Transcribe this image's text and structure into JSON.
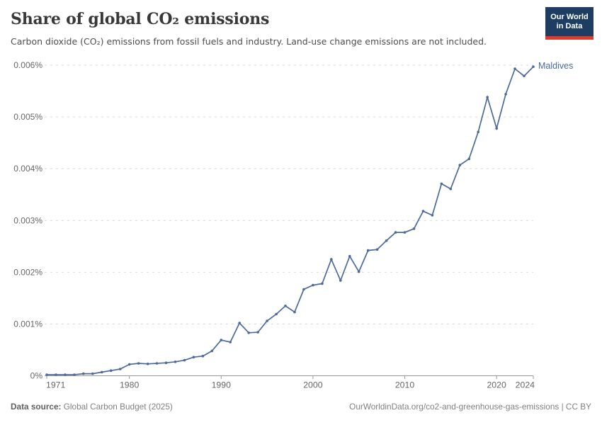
{
  "header": {
    "title": "Share of global CO₂ emissions",
    "subtitle": "Carbon dioxide (CO₂) emissions from fossil fuels and industry. Land-use change emissions are not included.",
    "logo_line1": "Our World",
    "logo_line2": "in Data"
  },
  "footer": {
    "source_label": "Data source:",
    "source_value": " Global Carbon Budget (2025)",
    "credit": "OurWorldinData.org/co2-and-greenhouse-gas-emissions | CC BY"
  },
  "chart_data": {
    "type": "line",
    "title": "Share of global CO₂ emissions",
    "series_label": "Maldives",
    "unit": "%",
    "x": [
      1971,
      1972,
      1973,
      1974,
      1975,
      1976,
      1977,
      1978,
      1979,
      1980,
      1981,
      1982,
      1983,
      1984,
      1985,
      1986,
      1987,
      1988,
      1989,
      1990,
      1991,
      1992,
      1993,
      1994,
      1995,
      1996,
      1997,
      1998,
      1999,
      2000,
      2001,
      2002,
      2003,
      2004,
      2005,
      2006,
      2007,
      2008,
      2009,
      2010,
      2011,
      2012,
      2013,
      2014,
      2015,
      2016,
      2017,
      2018,
      2019,
      2020,
      2021,
      2022,
      2023,
      2024
    ],
    "values": [
      2e-05,
      2e-05,
      2e-05,
      2e-05,
      4e-05,
      4e-05,
      7e-05,
      0.0001,
      0.00013,
      0.00022,
      0.00024,
      0.00023,
      0.00024,
      0.00025,
      0.00027,
      0.0003,
      0.00036,
      0.00038,
      0.00048,
      0.00069,
      0.00065,
      0.00102,
      0.00083,
      0.00084,
      0.00106,
      0.00119,
      0.00135,
      0.00123,
      0.00167,
      0.00175,
      0.00178,
      0.00225,
      0.00184,
      0.00231,
      0.00201,
      0.00242,
      0.00244,
      0.00261,
      0.00277,
      0.00277,
      0.00284,
      0.00318,
      0.0031,
      0.00371,
      0.00361,
      0.00407,
      0.00419,
      0.00471,
      0.00538,
      0.00478,
      0.00544,
      0.00593,
      0.00579,
      0.00597
    ],
    "ylim": [
      0,
      0.006
    ],
    "ytick_values": [
      0,
      0.001,
      0.002,
      0.003,
      0.004,
      0.005,
      0.006
    ],
    "ytick_labels": [
      "0%",
      "0.001%",
      "0.002%",
      "0.003%",
      "0.004%",
      "0.005%",
      "0.006%"
    ],
    "xtick_values": [
      1971,
      1980,
      1990,
      2000,
      2010,
      2020,
      2024
    ],
    "xtick_labels": [
      "1971",
      "1980",
      "1990",
      "2000",
      "2010",
      "2020",
      "2024"
    ],
    "grid": "dashed-horizontal",
    "legend_position": "end-of-line",
    "colors": {
      "line": "#4c6a9c",
      "grid": "#dadada",
      "axis": "#999999",
      "tick_text": "#666666"
    }
  }
}
